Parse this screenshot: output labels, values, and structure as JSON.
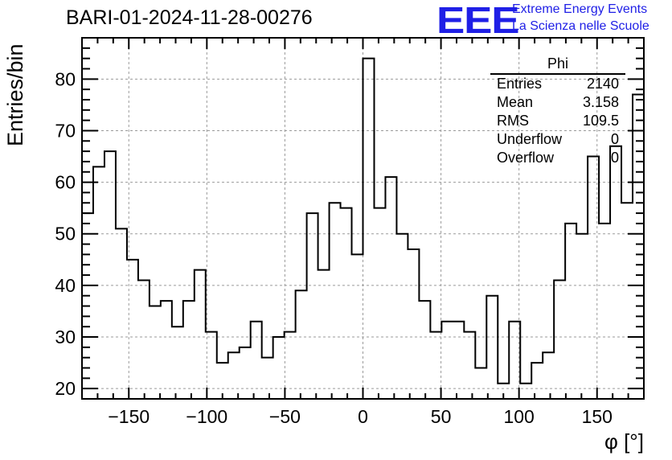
{
  "header": {
    "title": "BARI-01-2024-11-28-00276",
    "logo_text": "EEE",
    "logo_line1": "Extreme Energy Events",
    "logo_line2": "La Scienza nelle Scuole"
  },
  "stats_box": {
    "name": "Phi",
    "rows": [
      {
        "label": "Entries",
        "value": "2140"
      },
      {
        "label": "Mean",
        "value": "3.158"
      },
      {
        "label": "RMS",
        "value": "109.5"
      },
      {
        "label": "Underflow",
        "value": "0"
      },
      {
        "label": "Overflow",
        "value": "0"
      }
    ]
  },
  "chart_data": {
    "type": "bar",
    "style": "histogram-step",
    "title": "BARI-01-2024-11-28-00276",
    "xlabel": "φ [°]",
    "ylabel": "Entries/bin",
    "xlim": [
      -180,
      180
    ],
    "ylim": [
      18,
      88
    ],
    "bin_width": 7.2,
    "x_ticks": [
      -150,
      -100,
      -50,
      0,
      50,
      100,
      150
    ],
    "y_ticks": [
      20,
      30,
      40,
      50,
      60,
      70,
      80
    ],
    "grid": true,
    "line_color": "#000000",
    "values": [
      54,
      63,
      66,
      51,
      45,
      41,
      36,
      37,
      32,
      37,
      43,
      31,
      25,
      27,
      28,
      33,
      26,
      30,
      31,
      39,
      54,
      43,
      56,
      55,
      46,
      84,
      55,
      61,
      50,
      47,
      37,
      31,
      33,
      33,
      31,
      24,
      38,
      21,
      33,
      21,
      25,
      27,
      41,
      52,
      50,
      65,
      52,
      67,
      56,
      77
    ]
  }
}
